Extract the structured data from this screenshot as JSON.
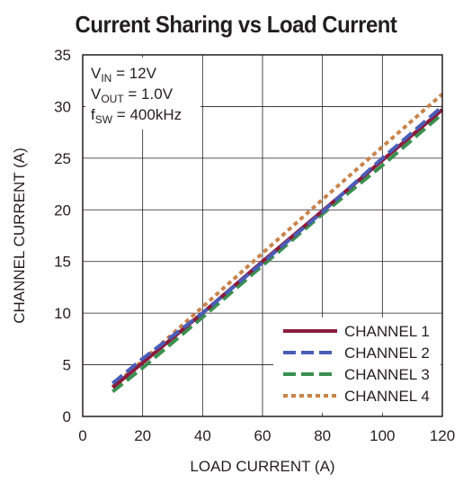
{
  "chart_data": {
    "type": "line",
    "title": "Current Sharing vs Load Current",
    "xlabel": "LOAD CURRENT (A)",
    "ylabel": "CHANNEL CURRENT (A)",
    "xlim": [
      0,
      120
    ],
    "ylim": [
      0,
      35
    ],
    "xticks": [
      0,
      20,
      40,
      60,
      80,
      100,
      120
    ],
    "yticks": [
      0,
      5,
      10,
      15,
      20,
      25,
      30,
      35
    ],
    "grid": true,
    "legend_position": "bottom-right",
    "annotations": [
      {
        "main": "V",
        "sub": "IN",
        "rest": " = 12V"
      },
      {
        "main": "V",
        "sub": "OUT",
        "rest": " = 1.0V"
      },
      {
        "main": "f",
        "sub": "SW",
        "rest": " = 400kHz"
      }
    ],
    "series": [
      {
        "name": "CHANNEL 1",
        "color": "#8b1a3b",
        "style": "solid",
        "points": [
          [
            10,
            2.8
          ],
          [
            20,
            5.2
          ],
          [
            40,
            10.0
          ],
          [
            60,
            15.0
          ],
          [
            80,
            19.9
          ],
          [
            100,
            24.8
          ],
          [
            120,
            29.7
          ]
        ]
      },
      {
        "name": "CHANNEL 2",
        "color": "#4a5db8",
        "style": "dashed",
        "points": [
          [
            10,
            3.2
          ],
          [
            20,
            5.6
          ],
          [
            40,
            10.0
          ],
          [
            60,
            14.9
          ],
          [
            80,
            19.8
          ],
          [
            100,
            25.0
          ],
          [
            120,
            30.0
          ]
        ]
      },
      {
        "name": "CHANNEL 3",
        "color": "#3a9050",
        "style": "dashed",
        "points": [
          [
            10,
            2.4
          ],
          [
            20,
            4.7
          ],
          [
            40,
            9.6
          ],
          [
            60,
            14.6
          ],
          [
            80,
            19.6
          ],
          [
            100,
            24.3
          ],
          [
            120,
            29.3
          ]
        ]
      },
      {
        "name": "CHANNEL 4",
        "color": "#c8834a",
        "style": "dotted",
        "points": [
          [
            10,
            2.9
          ],
          [
            20,
            5.4
          ],
          [
            40,
            10.6
          ],
          [
            60,
            15.8
          ],
          [
            80,
            21.0
          ],
          [
            100,
            26.1
          ],
          [
            120,
            31.2
          ]
        ]
      }
    ]
  }
}
